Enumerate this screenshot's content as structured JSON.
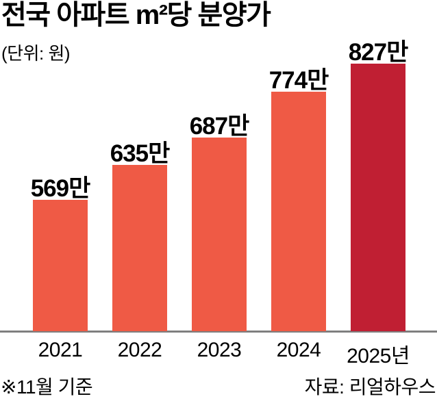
{
  "header": {
    "title": "전국 아파트 m²당 분양가",
    "unit_label": "(단위: 원)"
  },
  "chart_data": {
    "type": "bar",
    "title": "전국 아파트 m²당 분양가",
    "unit": "원",
    "categories": [
      "2021",
      "2022",
      "2023",
      "2024",
      "2025년"
    ],
    "values": [
      569,
      635,
      687,
      774,
      827
    ],
    "value_labels": [
      "569만",
      "635만",
      "687만",
      "774만",
      "827만"
    ],
    "bar_color": "#ef5a45",
    "highlight_color": "#c01f33",
    "highlight_index": 4,
    "axis_line_color": "#7f7f7f",
    "grid": false,
    "legend": false,
    "y_axis_visible": false,
    "ylim": [
      320,
      850
    ]
  },
  "footer": {
    "note": "※11월 기준",
    "source": "자료: 리얼하우스"
  }
}
